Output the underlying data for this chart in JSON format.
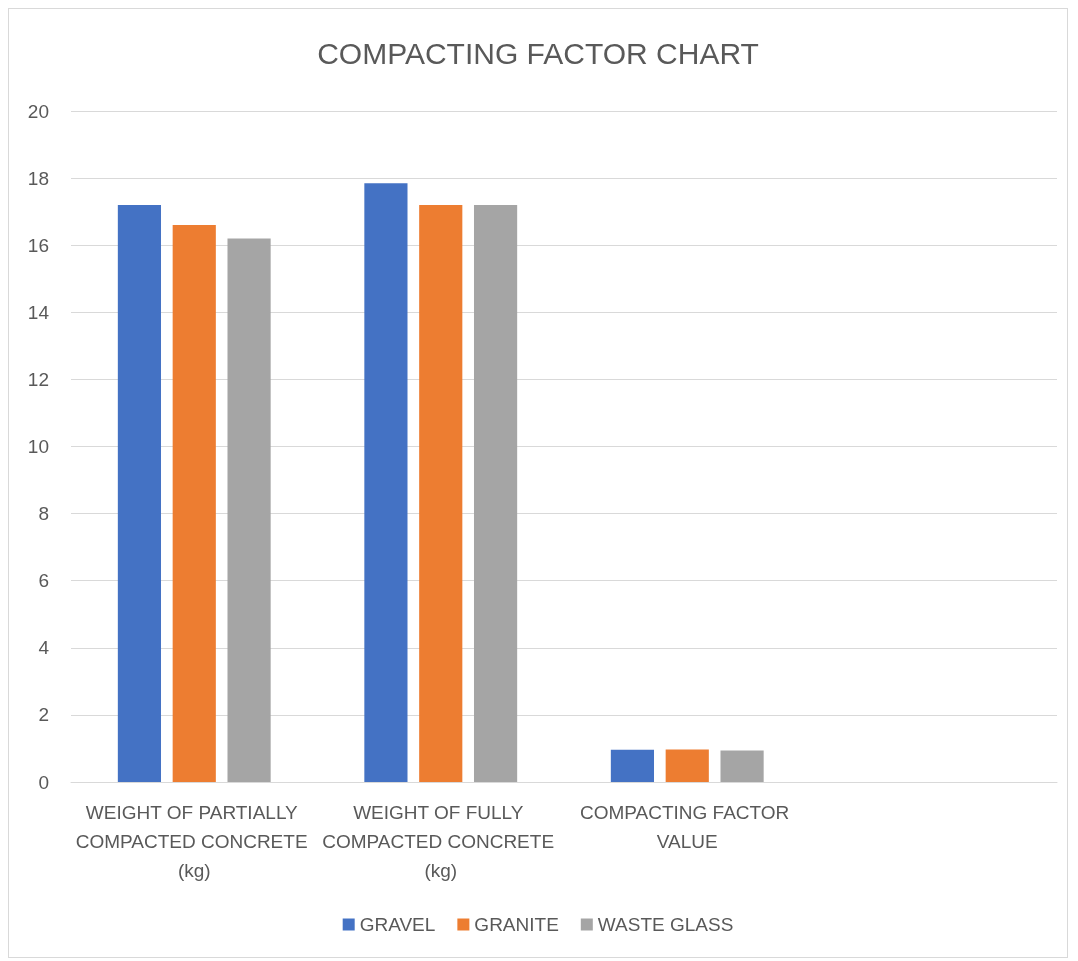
{
  "chart_data": {
    "type": "bar",
    "title": "COMPACTING FACTOR CHART",
    "categories": [
      "WEIGHT OF PARTIALLY COMPACTED CONCRETE (kg)",
      "WEIGHT OF FULLY COMPACTED CONCRETE (kg)",
      "COMPACTING FACTOR VALUE",
      null
    ],
    "series": [
      {
        "name": "GRAVEL",
        "color": "#4472c4",
        "values": [
          17.2,
          17.85,
          0.96,
          null
        ]
      },
      {
        "name": "GRANITE",
        "color": "#ed7d31",
        "values": [
          16.6,
          17.2,
          0.97,
          null
        ]
      },
      {
        "name": "WASTE GLASS",
        "color": "#a5a5a5",
        "values": [
          16.2,
          17.2,
          0.94,
          null
        ]
      }
    ],
    "ylim": [
      0,
      20
    ],
    "yticks": [
      0,
      2,
      4,
      6,
      8,
      10,
      12,
      14,
      16,
      18,
      20
    ],
    "grid": "y",
    "legend": "bottom"
  }
}
